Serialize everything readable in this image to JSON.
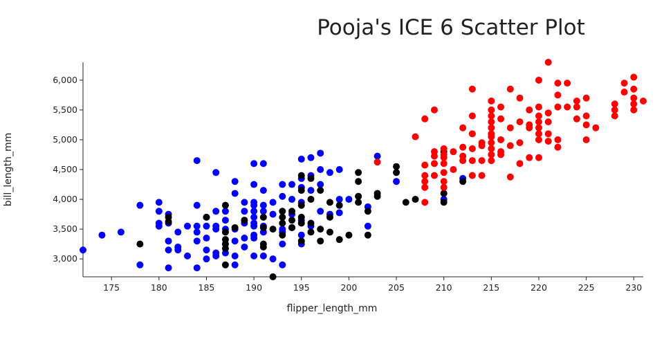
{
  "chart_data": {
    "type": "scatter",
    "title": "Pooja's ICE 6 Scatter Plot",
    "xlabel": "flipper_length_mm",
    "ylabel": "bill_length_mm",
    "xlim": [
      172,
      231
    ],
    "ylim": [
      2700,
      6300
    ],
    "x_ticks": [
      175,
      180,
      185,
      190,
      195,
      200,
      205,
      210,
      215,
      220,
      225,
      230
    ],
    "y_ticks": [
      3000,
      3500,
      4000,
      4500,
      5000,
      5500,
      6000
    ],
    "x_tick_labels": [
      "175",
      "180",
      "185",
      "190",
      "195",
      "200",
      "205",
      "210",
      "215",
      "220",
      "225",
      "230"
    ],
    "y_tick_labels": [
      "3,000",
      "3,500",
      "4,000",
      "4,500",
      "5,000",
      "5,500",
      "6,000"
    ],
    "grid": false,
    "legend": "none",
    "series": [
      {
        "name": "blue",
        "color": "#0000ff",
        "points": [
          [
            172,
            3150
          ],
          [
            174,
            3400
          ],
          [
            176,
            3450
          ],
          [
            178,
            3900
          ],
          [
            178,
            2900
          ],
          [
            180,
            3950
          ],
          [
            180,
            3800
          ],
          [
            180,
            3600
          ],
          [
            180,
            3550
          ],
          [
            181,
            3750
          ],
          [
            181,
            3600
          ],
          [
            181,
            3300
          ],
          [
            181,
            3150
          ],
          [
            181,
            2850
          ],
          [
            182,
            3450
          ],
          [
            182,
            3200
          ],
          [
            182,
            3150
          ],
          [
            183,
            3550
          ],
          [
            183,
            3050
          ],
          [
            184,
            4650
          ],
          [
            184,
            3900
          ],
          [
            184,
            3550
          ],
          [
            184,
            3450
          ],
          [
            184,
            3300
          ],
          [
            184,
            2850
          ],
          [
            185,
            3700
          ],
          [
            185,
            3550
          ],
          [
            185,
            3350
          ],
          [
            185,
            3150
          ],
          [
            185,
            3000
          ],
          [
            186,
            4450
          ],
          [
            186,
            3800
          ],
          [
            186,
            3550
          ],
          [
            186,
            3500
          ],
          [
            186,
            3100
          ],
          [
            186,
            3050
          ],
          [
            187,
            3800
          ],
          [
            187,
            3650
          ],
          [
            187,
            3500
          ],
          [
            187,
            3250
          ],
          [
            187,
            3100
          ],
          [
            188,
            4300
          ],
          [
            188,
            3500
          ],
          [
            188,
            3300
          ],
          [
            188,
            3050
          ],
          [
            188,
            2900
          ],
          [
            188,
            4100
          ],
          [
            189,
            3950
          ],
          [
            189,
            3800
          ],
          [
            189,
            3600
          ],
          [
            189,
            3350
          ],
          [
            189,
            3200
          ],
          [
            190,
            4600
          ],
          [
            190,
            4250
          ],
          [
            190,
            3950
          ],
          [
            190,
            3900
          ],
          [
            190,
            3800
          ],
          [
            190,
            3700
          ],
          [
            190,
            3600
          ],
          [
            190,
            3550
          ],
          [
            190,
            3400
          ],
          [
            190,
            3350
          ],
          [
            190,
            3050
          ],
          [
            191,
            4600
          ],
          [
            191,
            4150
          ],
          [
            191,
            3900
          ],
          [
            191,
            3800
          ],
          [
            191,
            3550
          ],
          [
            191,
            3450
          ],
          [
            191,
            3050
          ],
          [
            192,
            3950
          ],
          [
            192,
            3750
          ],
          [
            192,
            3000
          ],
          [
            193,
            4250
          ],
          [
            193,
            4050
          ],
          [
            193,
            3500
          ],
          [
            193,
            3450
          ],
          [
            193,
            3250
          ],
          [
            193,
            2900
          ],
          [
            194,
            4250
          ],
          [
            194,
            4000
          ],
          [
            194,
            3750
          ],
          [
            194,
            3525
          ],
          [
            195,
            4675
          ],
          [
            195,
            4350
          ],
          [
            195,
            4200
          ],
          [
            195,
            3950
          ],
          [
            195,
            3650
          ],
          [
            195,
            3400
          ],
          [
            195,
            3250
          ],
          [
            196,
            4700
          ],
          [
            196,
            4400
          ],
          [
            196,
            4150
          ],
          [
            196,
            3550
          ],
          [
            197,
            4775
          ],
          [
            197,
            4500
          ],
          [
            197,
            4250
          ],
          [
            197,
            3800
          ],
          [
            198,
            4450
          ],
          [
            198,
            3750
          ],
          [
            199,
            4500
          ],
          [
            199,
            4000
          ],
          [
            199,
            3775
          ],
          [
            200,
            4000
          ],
          [
            201,
            4050
          ],
          [
            202,
            3875
          ],
          [
            202,
            3550
          ],
          [
            203,
            4725
          ],
          [
            205,
            4300
          ],
          [
            212,
            4350
          ],
          [
            210,
            4000
          ]
        ]
      },
      {
        "name": "black",
        "color": "#000000",
        "points": [
          [
            178,
            3250
          ],
          [
            181,
            3700
          ],
          [
            181,
            3625
          ],
          [
            185,
            3700
          ],
          [
            187,
            3900
          ],
          [
            187,
            3450
          ],
          [
            187,
            3325
          ],
          [
            187,
            3250
          ],
          [
            187,
            3175
          ],
          [
            187,
            2900
          ],
          [
            188,
            3525
          ],
          [
            189,
            3650
          ],
          [
            191,
            3700
          ],
          [
            191,
            3525
          ],
          [
            191,
            3250
          ],
          [
            191,
            3200
          ],
          [
            192,
            3500
          ],
          [
            192,
            2700
          ],
          [
            193,
            3800
          ],
          [
            193,
            3700
          ],
          [
            193,
            3600
          ],
          [
            193,
            3400
          ],
          [
            194,
            3800
          ],
          [
            194,
            3650
          ],
          [
            194,
            3525
          ],
          [
            195,
            4400
          ],
          [
            195,
            4150
          ],
          [
            195,
            3900
          ],
          [
            195,
            3700
          ],
          [
            195,
            3600
          ],
          [
            195,
            3300
          ],
          [
            196,
            4350
          ],
          [
            196,
            4000
          ],
          [
            196,
            3600
          ],
          [
            196,
            3450
          ],
          [
            197,
            4150
          ],
          [
            197,
            3500
          ],
          [
            197,
            3300
          ],
          [
            198,
            3950
          ],
          [
            198,
            3700
          ],
          [
            198,
            3450
          ],
          [
            199,
            3900
          ],
          [
            199,
            3325
          ],
          [
            200,
            3400
          ],
          [
            201,
            4450
          ],
          [
            201,
            4300
          ],
          [
            201,
            4050
          ],
          [
            201,
            3950
          ],
          [
            202,
            3800
          ],
          [
            202,
            3400
          ],
          [
            203,
            4050
          ],
          [
            203,
            4100
          ],
          [
            205,
            4550
          ],
          [
            205,
            4450
          ],
          [
            206,
            3950
          ],
          [
            207,
            4000
          ],
          [
            210,
            4800
          ],
          [
            210,
            4100
          ],
          [
            210,
            3950
          ],
          [
            212,
            4300
          ]
        ]
      },
      {
        "name": "red",
        "color": "#ff0000",
        "points": [
          [
            203,
            4625
          ],
          [
            207,
            5050
          ],
          [
            208,
            5350
          ],
          [
            208,
            4575
          ],
          [
            208,
            4400
          ],
          [
            208,
            4300
          ],
          [
            208,
            4200
          ],
          [
            208,
            3950
          ],
          [
            209,
            5500
          ],
          [
            209,
            4800
          ],
          [
            209,
            4725
          ],
          [
            209,
            4600
          ],
          [
            209,
            4400
          ],
          [
            210,
            4850
          ],
          [
            210,
            4750
          ],
          [
            210,
            4700
          ],
          [
            210,
            4600
          ],
          [
            210,
            4450
          ],
          [
            210,
            4300
          ],
          [
            210,
            4200
          ],
          [
            211,
            4800
          ],
          [
            211,
            4500
          ],
          [
            212,
            5200
          ],
          [
            212,
            4875
          ],
          [
            212,
            4725
          ],
          [
            212,
            4650
          ],
          [
            213,
            5850
          ],
          [
            213,
            5400
          ],
          [
            213,
            5100
          ],
          [
            213,
            4850
          ],
          [
            213,
            4650
          ],
          [
            213,
            4400
          ],
          [
            214,
            4950
          ],
          [
            214,
            4900
          ],
          [
            214,
            4650
          ],
          [
            214,
            4400
          ],
          [
            215,
            5650
          ],
          [
            215,
            5500
          ],
          [
            215,
            5400
          ],
          [
            215,
            5300
          ],
          [
            215,
            5200
          ],
          [
            215,
            5100
          ],
          [
            215,
            5050
          ],
          [
            215,
            4950
          ],
          [
            215,
            4850
          ],
          [
            215,
            4750
          ],
          [
            215,
            4650
          ],
          [
            216,
            5550
          ],
          [
            216,
            5350
          ],
          [
            216,
            5000
          ],
          [
            216,
            4800
          ],
          [
            216,
            4750
          ],
          [
            217,
            5850
          ],
          [
            217,
            5200
          ],
          [
            217,
            4900
          ],
          [
            217,
            4375
          ],
          [
            218,
            5700
          ],
          [
            218,
            5300
          ],
          [
            218,
            4950
          ],
          [
            218,
            4600
          ],
          [
            219,
            5500
          ],
          [
            219,
            5250
          ],
          [
            219,
            5200
          ],
          [
            219,
            4700
          ],
          [
            220,
            6000
          ],
          [
            220,
            5550
          ],
          [
            220,
            5400
          ],
          [
            220,
            5300
          ],
          [
            220,
            5200
          ],
          [
            220,
            5100
          ],
          [
            220,
            5000
          ],
          [
            220,
            4700
          ],
          [
            221,
            6300
          ],
          [
            221,
            5450
          ],
          [
            221,
            5300
          ],
          [
            221,
            5100
          ],
          [
            221,
            4975
          ],
          [
            222,
            5950
          ],
          [
            222,
            5750
          ],
          [
            222,
            5550
          ],
          [
            222,
            5000
          ],
          [
            222,
            4875
          ],
          [
            223,
            5950
          ],
          [
            223,
            5550
          ],
          [
            224,
            5650
          ],
          [
            224,
            5350
          ],
          [
            224,
            5550
          ],
          [
            225,
            5700
          ],
          [
            225,
            5400
          ],
          [
            225,
            5250
          ],
          [
            225,
            5000
          ],
          [
            226,
            5200
          ],
          [
            228,
            5600
          ],
          [
            228,
            5500
          ],
          [
            228,
            5400
          ],
          [
            229,
            5950
          ],
          [
            229,
            5800
          ],
          [
            230,
            6050
          ],
          [
            230,
            5850
          ],
          [
            230,
            5700
          ],
          [
            230,
            5600
          ],
          [
            230,
            5500
          ],
          [
            231,
            5650
          ]
        ]
      }
    ]
  }
}
